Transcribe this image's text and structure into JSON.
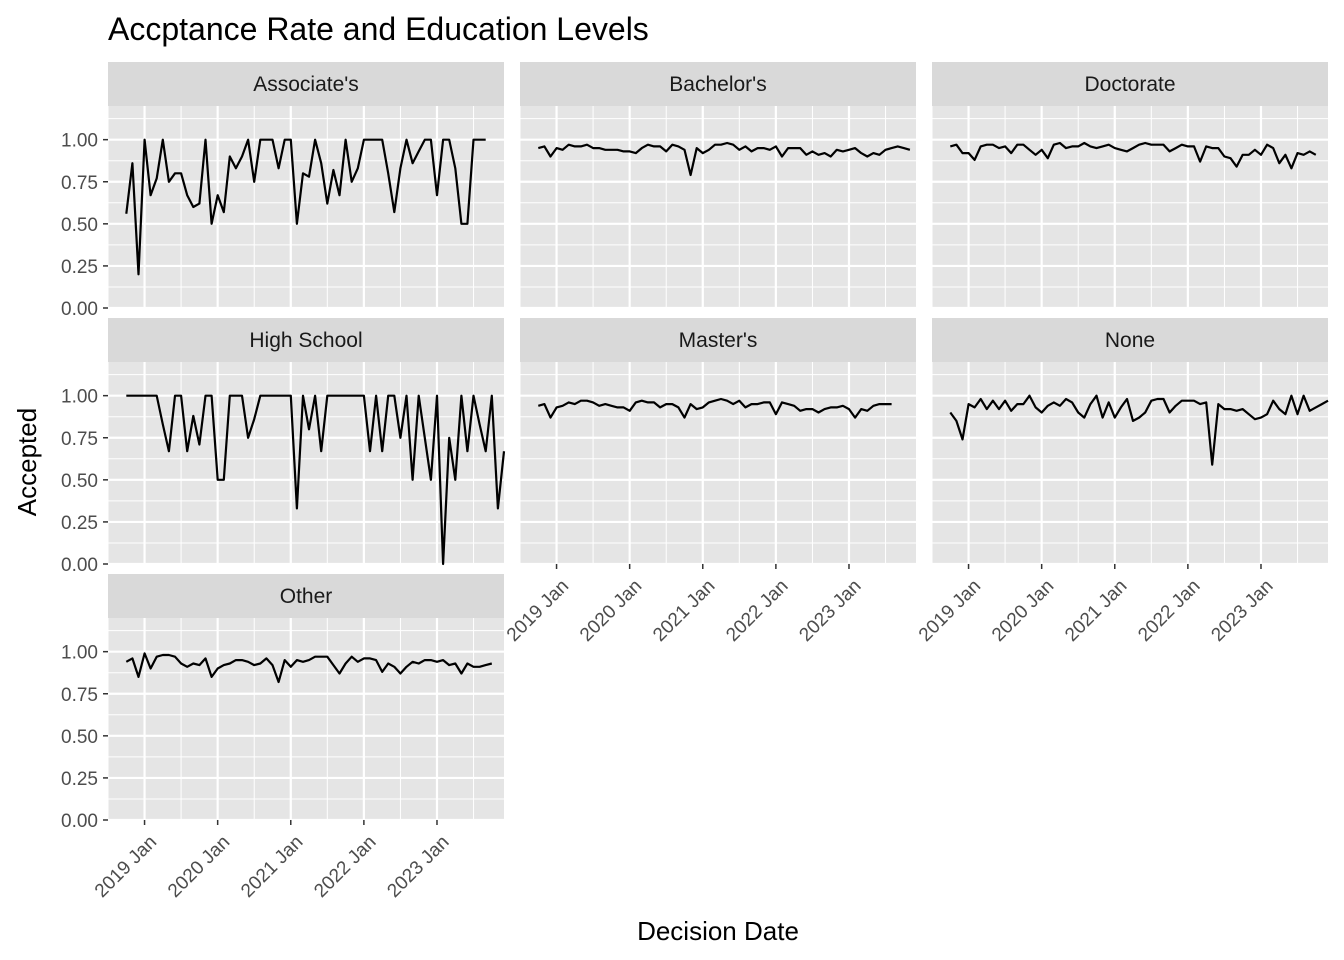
{
  "chart_data": {
    "type": "line",
    "title": "Accptance Rate and Education Levels",
    "xlabel": "Decision Date",
    "ylabel": "Accepted",
    "ylim": [
      0,
      1.2
    ],
    "y_ticks": [
      "0.00",
      "0.25",
      "0.50",
      "0.75",
      "1.00"
    ],
    "y_tick_values": [
      0,
      0.25,
      0.5,
      0.75,
      1.0
    ],
    "x_ticks": [
      "2019 Jan",
      "2020 Jan",
      "2021 Jan",
      "2022 Jan",
      "2023 Jan"
    ],
    "x_tick_values": [
      "2019-01",
      "2020-01",
      "2021-01",
      "2022-01",
      "2023-01"
    ],
    "xlim": [
      "2018-07",
      "2023-12"
    ],
    "grid": true,
    "line_color": "#000000",
    "panel_background": "#e5e5e5",
    "strip_background": "#d9d9d9",
    "grid_color": "#ffffff",
    "x_start": "2018-10",
    "x_step": "1 month",
    "panels": [
      {
        "name": "Associate's",
        "values": [
          0.56,
          0.86,
          0.2,
          1.0,
          0.67,
          0.77,
          1.0,
          0.75,
          0.8,
          0.8,
          0.67,
          0.6,
          0.62,
          1.0,
          0.5,
          0.67,
          0.57,
          0.9,
          0.83,
          0.9,
          1.0,
          0.75,
          1.0,
          1.0,
          1.0,
          0.83,
          1.0,
          1.0,
          0.5,
          0.8,
          0.78,
          1.0,
          0.86,
          0.62,
          0.82,
          0.67,
          1.0,
          0.75,
          0.83,
          1.0,
          1.0,
          1.0,
          1.0,
          0.8,
          0.57,
          0.83,
          1.0,
          0.86,
          0.93,
          1.0,
          1.0,
          0.67,
          1.0,
          1.0,
          0.83,
          0.5,
          0.5,
          1.0,
          1.0,
          1.0
        ]
      },
      {
        "name": "Bachelor's",
        "values": [
          0.95,
          0.96,
          0.9,
          0.95,
          0.94,
          0.97,
          0.96,
          0.96,
          0.97,
          0.95,
          0.95,
          0.94,
          0.94,
          0.94,
          0.93,
          0.93,
          0.92,
          0.95,
          0.97,
          0.96,
          0.96,
          0.93,
          0.97,
          0.96,
          0.94,
          0.79,
          0.95,
          0.92,
          0.94,
          0.97,
          0.97,
          0.98,
          0.97,
          0.94,
          0.96,
          0.93,
          0.95,
          0.95,
          0.94,
          0.96,
          0.9,
          0.95,
          0.95,
          0.95,
          0.91,
          0.93,
          0.91,
          0.92,
          0.9,
          0.94,
          0.93,
          0.94,
          0.95,
          0.92,
          0.9,
          0.92,
          0.91,
          0.94,
          0.95,
          0.96,
          0.95,
          0.94
        ]
      },
      {
        "name": "Doctorate",
        "values": [
          0.96,
          0.97,
          0.92,
          0.92,
          0.88,
          0.96,
          0.97,
          0.97,
          0.95,
          0.96,
          0.92,
          0.97,
          0.97,
          0.94,
          0.91,
          0.94,
          0.89,
          0.97,
          0.98,
          0.95,
          0.96,
          0.96,
          0.98,
          0.96,
          0.95,
          0.96,
          0.97,
          0.95,
          0.94,
          0.93,
          0.95,
          0.97,
          0.98,
          0.97,
          0.97,
          0.97,
          0.93,
          0.95,
          0.97,
          0.96,
          0.96,
          0.87,
          0.96,
          0.95,
          0.95,
          0.9,
          0.89,
          0.84,
          0.91,
          0.91,
          0.94,
          0.91,
          0.97,
          0.95,
          0.86,
          0.91,
          0.83,
          0.92,
          0.91,
          0.93,
          0.91
        ]
      },
      {
        "name": "High School",
        "values": [
          1.0,
          1.0,
          1.0,
          1.0,
          1.0,
          1.0,
          0.83,
          0.67,
          1.0,
          1.0,
          0.67,
          0.88,
          0.71,
          1.0,
          1.0,
          0.5,
          0.5,
          1.0,
          1.0,
          1.0,
          0.75,
          0.86,
          1.0,
          1.0,
          1.0,
          1.0,
          1.0,
          1.0,
          0.33,
          1.0,
          0.8,
          1.0,
          0.67,
          1.0,
          1.0,
          1.0,
          1.0,
          1.0,
          1.0,
          1.0,
          0.67,
          1.0,
          0.67,
          1.0,
          1.0,
          0.75,
          1.0,
          0.5,
          1.0,
          0.75,
          0.5,
          1.0,
          0.0,
          0.75,
          0.5,
          1.0,
          0.67,
          1.0,
          0.83,
          0.67,
          1.0,
          0.33,
          0.67
        ]
      },
      {
        "name": "Master's",
        "values": [
          0.94,
          0.95,
          0.87,
          0.93,
          0.94,
          0.96,
          0.95,
          0.97,
          0.97,
          0.96,
          0.94,
          0.95,
          0.94,
          0.93,
          0.93,
          0.91,
          0.96,
          0.97,
          0.96,
          0.96,
          0.93,
          0.95,
          0.95,
          0.93,
          0.87,
          0.95,
          0.92,
          0.93,
          0.96,
          0.97,
          0.98,
          0.97,
          0.95,
          0.97,
          0.93,
          0.95,
          0.95,
          0.96,
          0.96,
          0.89,
          0.96,
          0.95,
          0.94,
          0.91,
          0.92,
          0.92,
          0.9,
          0.92,
          0.93,
          0.93,
          0.94,
          0.92,
          0.87,
          0.92,
          0.91,
          0.94,
          0.95,
          0.95,
          0.95
        ]
      },
      {
        "name": "None",
        "values": [
          0.9,
          0.85,
          0.74,
          0.95,
          0.93,
          0.98,
          0.92,
          0.97,
          0.92,
          0.97,
          0.91,
          0.95,
          0.95,
          1.0,
          0.93,
          0.9,
          0.94,
          0.96,
          0.94,
          0.98,
          0.96,
          0.9,
          0.87,
          0.95,
          1.0,
          0.87,
          0.96,
          0.87,
          0.93,
          0.98,
          0.85,
          0.87,
          0.9,
          0.97,
          0.98,
          0.98,
          0.9,
          0.94,
          0.97,
          0.97,
          0.97,
          0.95,
          0.96,
          0.59,
          0.95,
          0.92,
          0.92,
          0.91,
          0.92,
          0.89,
          0.86,
          0.87,
          0.89,
          0.97,
          0.92,
          0.89,
          1.0,
          0.89,
          1.0,
          0.91,
          0.93,
          0.95,
          0.97
        ]
      },
      {
        "name": "Other",
        "values": [
          0.94,
          0.96,
          0.85,
          0.99,
          0.9,
          0.97,
          0.98,
          0.98,
          0.97,
          0.93,
          0.91,
          0.93,
          0.92,
          0.96,
          0.85,
          0.9,
          0.92,
          0.93,
          0.95,
          0.95,
          0.94,
          0.92,
          0.93,
          0.96,
          0.92,
          0.82,
          0.95,
          0.91,
          0.95,
          0.94,
          0.95,
          0.97,
          0.97,
          0.97,
          0.92,
          0.87,
          0.93,
          0.97,
          0.94,
          0.96,
          0.96,
          0.95,
          0.88,
          0.93,
          0.91,
          0.87,
          0.91,
          0.94,
          0.93,
          0.95,
          0.95,
          0.94,
          0.95,
          0.92,
          0.93,
          0.87,
          0.93,
          0.91,
          0.91,
          0.92,
          0.93
        ]
      }
    ]
  }
}
